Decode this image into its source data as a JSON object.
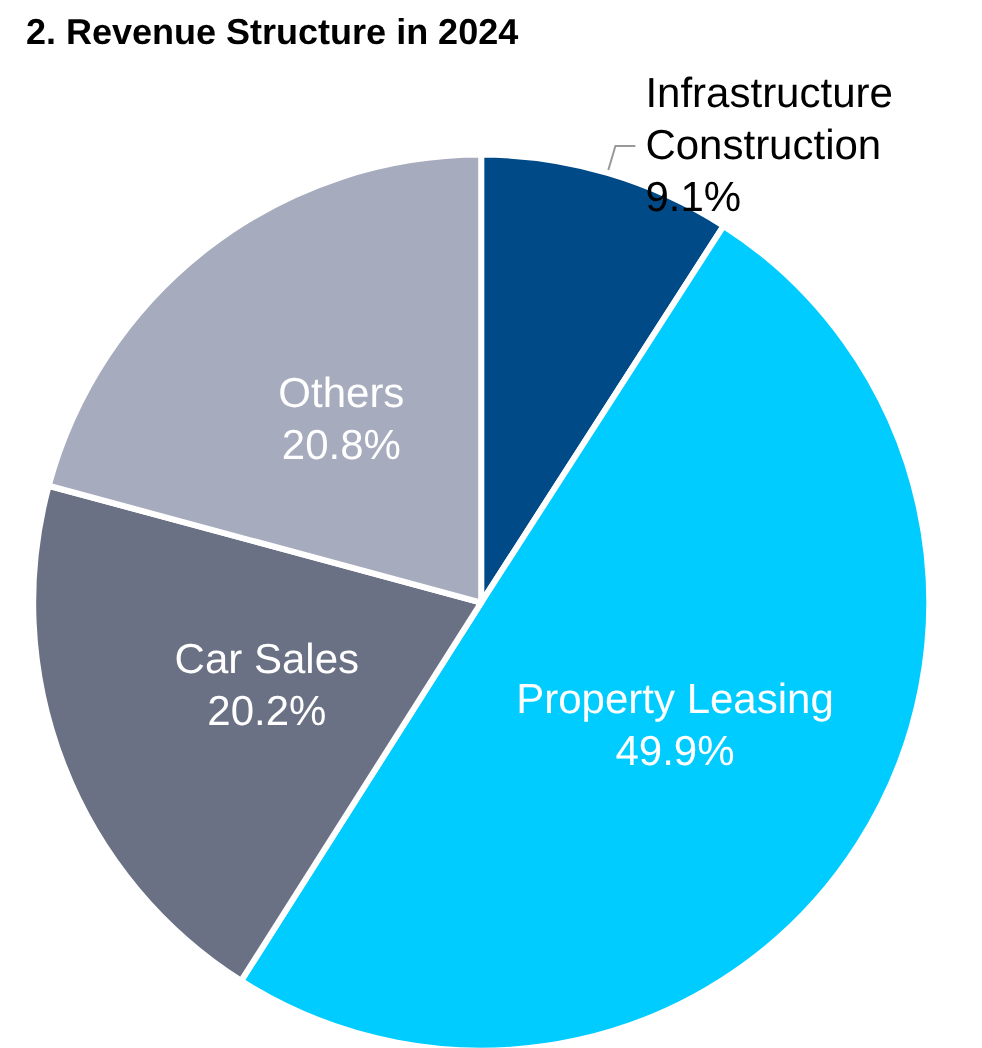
{
  "chart_data": {
    "type": "pie",
    "title": "2. Revenue Structure in 2024",
    "categories": [
      "Infrastructure\nConstruction",
      "Property Leasing",
      "Car Sales",
      "Others"
    ],
    "values": [
      9.1,
      49.9,
      20.2,
      20.8
    ],
    "colors": [
      "#004a87",
      "#00ccff",
      "#6b7185",
      "#a6abbd"
    ],
    "value_labels": [
      "9.1%",
      "49.9%",
      "20.2%",
      "20.8%"
    ],
    "legend": false
  }
}
